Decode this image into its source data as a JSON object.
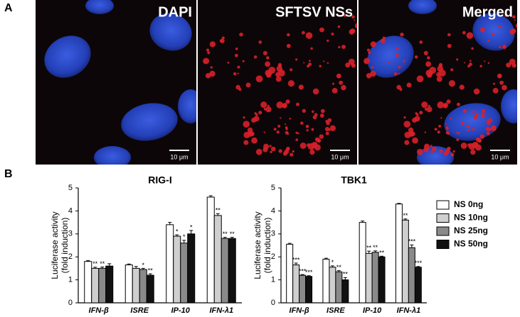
{
  "panel_labels": [
    "A",
    "B"
  ],
  "images": [
    {
      "label": "DAPI",
      "scale": "10 μm"
    },
    {
      "label": "SFTSV NSs",
      "scale": "10 μm"
    },
    {
      "label": "Merged",
      "scale": "10 μm"
    }
  ],
  "chart_data": [
    {
      "type": "bar",
      "title": "RIG-I",
      "ylabel": [
        "Luciferase activity",
        "(fold induction)"
      ],
      "categories": [
        "IFN-β",
        "ISRE",
        "IP-10",
        "IFN-λ1"
      ],
      "ylim": [
        0,
        5
      ],
      "yticks": [
        0,
        1,
        2,
        3,
        4,
        5
      ],
      "legend": false,
      "series": [
        {
          "color": "#ffffff",
          "values": [
            1.8,
            1.65,
            3.4,
            4.6
          ],
          "errors": [
            0.04,
            0.04,
            0.1,
            0.06
          ],
          "annotations": [
            null,
            null,
            null,
            null
          ]
        },
        {
          "color": "#cfcfcf",
          "values": [
            1.5,
            1.5,
            2.9,
            3.8
          ],
          "errors": [
            0.05,
            0.08,
            0.06,
            0.08
          ],
          "annotations": [
            "**",
            null,
            "*",
            "**"
          ]
        },
        {
          "color": "#8a8a8a",
          "values": [
            1.5,
            1.45,
            2.6,
            2.8
          ],
          "errors": [
            0.06,
            0.05,
            0.12,
            0.05
          ],
          "annotations": [
            "**",
            "*",
            "*",
            "**"
          ]
        },
        {
          "color": "#111111",
          "values": [
            1.6,
            1.2,
            3.0,
            2.8
          ],
          "errors": [
            0.1,
            0.06,
            0.15,
            0.05
          ],
          "annotations": [
            null,
            "**",
            "*",
            "**"
          ]
        }
      ]
    },
    {
      "type": "bar",
      "title": "TBK1",
      "ylabel": [
        "Luciferase activity",
        "(fold induction)"
      ],
      "categories": [
        "IFN-β",
        "ISRE",
        "IP-10",
        "IFN-λ1"
      ],
      "ylim": [
        0,
        5
      ],
      "yticks": [
        0,
        1,
        2,
        3,
        4,
        5
      ],
      "legend": true,
      "series": [
        {
          "name": "NS 0ng",
          "color": "#ffffff",
          "values": [
            2.55,
            1.9,
            3.5,
            4.3
          ],
          "errors": [
            0.04,
            0.04,
            0.06,
            0.03
          ],
          "annotations": [
            null,
            null,
            null,
            null
          ]
        },
        {
          "name": "NS 10ng",
          "color": "#cfcfcf",
          "values": [
            1.65,
            1.55,
            2.15,
            3.6
          ],
          "errors": [
            0.08,
            0.06,
            0.1,
            0.05
          ],
          "annotations": [
            "***",
            "*",
            "**",
            "**"
          ]
        },
        {
          "name": "NS 25ng",
          "color": "#8a8a8a",
          "values": [
            1.2,
            1.35,
            2.2,
            2.4
          ],
          "errors": [
            0.03,
            0.05,
            0.06,
            0.12
          ],
          "annotations": [
            "***",
            "**",
            "**",
            "***"
          ]
        },
        {
          "name": "NS 50ng",
          "color": "#111111",
          "values": [
            1.15,
            1.0,
            2.0,
            1.55
          ],
          "errors": [
            0.03,
            0.1,
            0.03,
            0.03
          ],
          "annotations": [
            "***",
            "**",
            "**",
            "***"
          ]
        }
      ]
    }
  ]
}
